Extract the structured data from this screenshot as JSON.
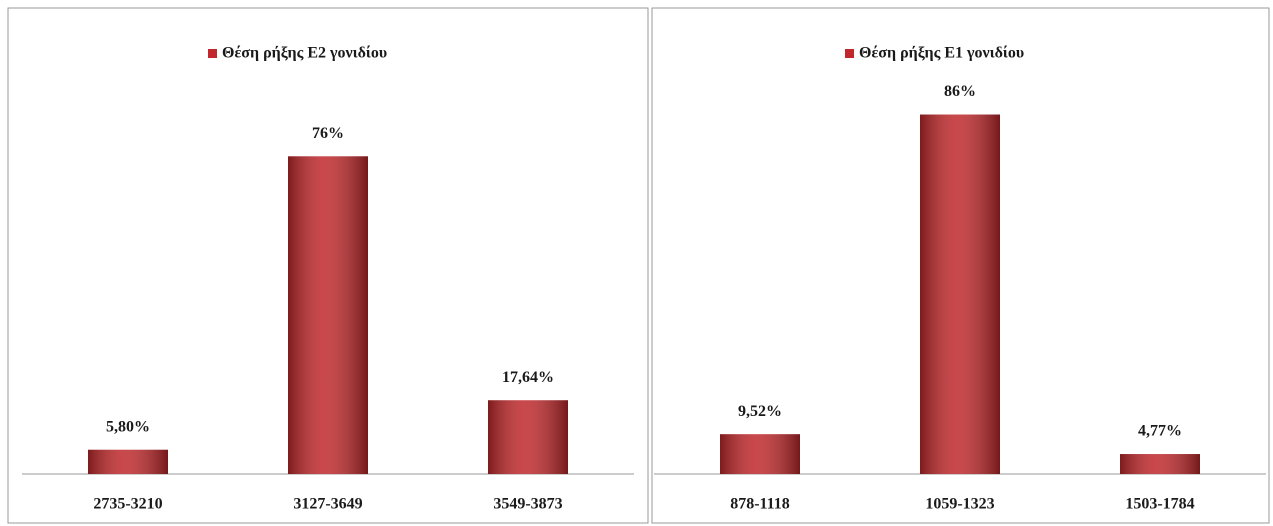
{
  "chart_data": [
    {
      "type": "bar",
      "categories": [
        "2735-3210",
        "3127-3649",
        "3549-3873"
      ],
      "series": [
        {
          "name": "Θέση ρήξης E2 γονιδίου",
          "color": "#c0282b",
          "values": [
            5.8,
            76,
            17.64
          ],
          "value_labels": [
            "5,80%",
            "76%",
            "17,64%"
          ]
        }
      ]
    },
    {
      "type": "bar",
      "categories": [
        "878-1118",
        "1059-1323",
        "1503-1784"
      ],
      "series": [
        {
          "name": "Θέση ρήξης E1 γονιδίου",
          "color": "#c0282b",
          "values": [
            9.52,
            86,
            4.77
          ],
          "value_labels": [
            "9,52%",
            "86%",
            "4,77%"
          ]
        }
      ]
    }
  ]
}
